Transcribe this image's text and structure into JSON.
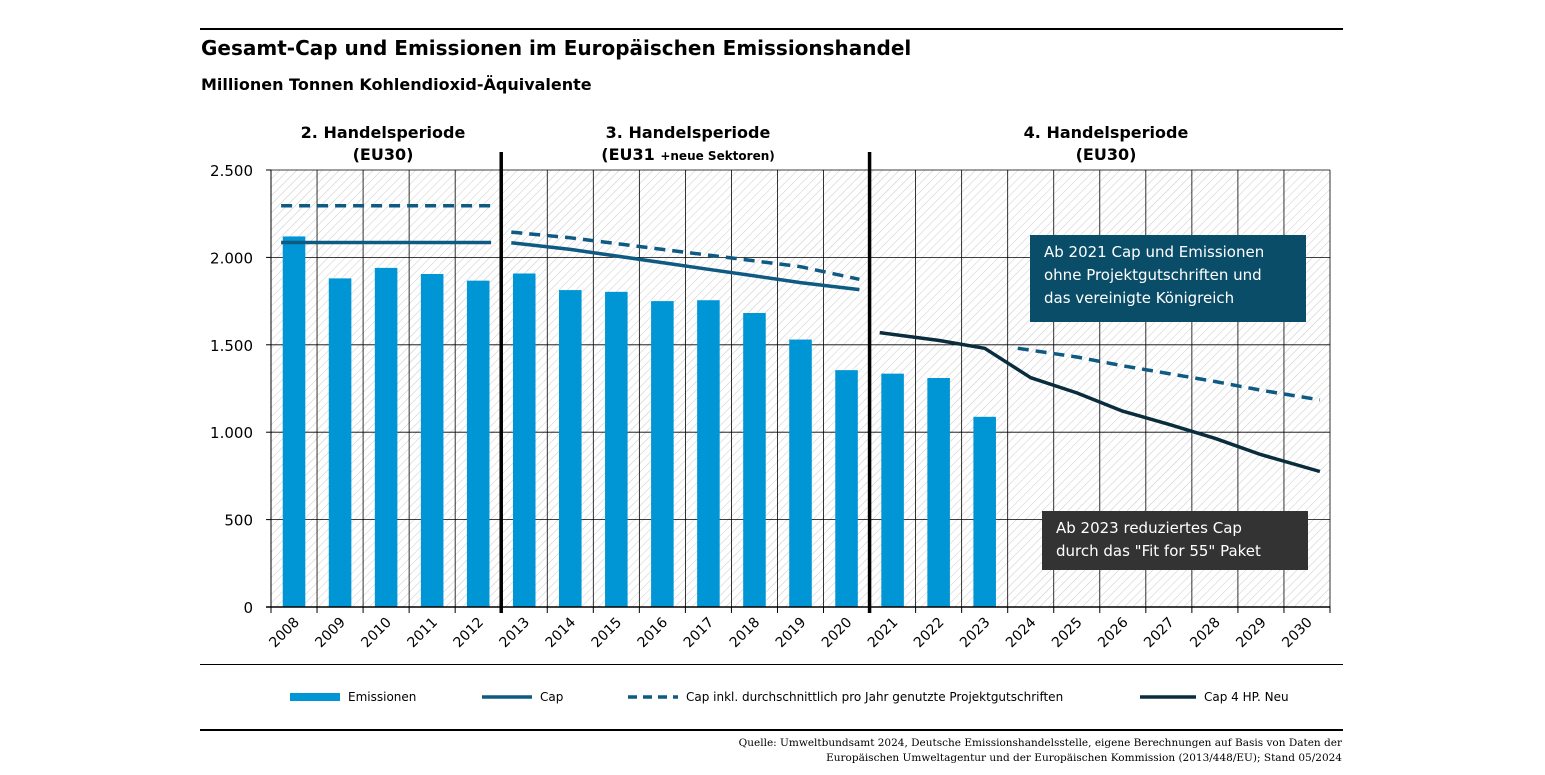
{
  "header": {
    "title": "Gesamt-Cap und Emissionen im Europäischen Emissionshandel",
    "subtitle": "Millionen Tonnen Kohlendioxid-Äquivalente"
  },
  "periods": [
    {
      "line1": "2. Handelsperiode",
      "line2": "(EU30)",
      "line2_small": ""
    },
    {
      "line1": "3. Handelsperiode",
      "line2": "(EU31",
      "line2_small": "+neue Sektoren)"
    },
    {
      "line1": "4. Handelsperiode",
      "line2": "(EU30)",
      "line2_small": ""
    }
  ],
  "annotations": {
    "box1": [
      "Ab 2021 Cap und Emissionen",
      "ohne Projektgutschriften und",
      "das vereinigte Königreich"
    ],
    "box2": [
      "Ab 2023 reduziertes Cap",
      "durch das \"Fit for 55\" Paket"
    ]
  },
  "legend": {
    "emissionen": "Emissionen",
    "cap": "Cap",
    "cap_credits": "Cap inkl. durchschnittlich pro Jahr genutzte Projektgutschriften",
    "cap_new": "Cap 4 HP. Neu"
  },
  "source": {
    "line1": "Quelle: Umweltbundsamt 2024, Deutsche Emissionshandelsstelle, eigene Berechnungen auf Basis von Daten der",
    "line2": "Europäischen Umweltagentur und der Europäischen Kommission (2013/448/EU); Stand 05/2024"
  },
  "chart_data": {
    "type": "bar",
    "categories": [
      "2008",
      "2009",
      "2010",
      "2011",
      "2012",
      "2013",
      "2014",
      "2015",
      "2016",
      "2017",
      "2018",
      "2019",
      "2020",
      "2021",
      "2022",
      "2023",
      "2024",
      "2025",
      "2026",
      "2027",
      "2028",
      "2029",
      "2030"
    ],
    "ylim": [
      0,
      2500
    ],
    "yticks": [
      0,
      500,
      1000,
      1500,
      2000,
      2500
    ],
    "ytick_labels": [
      "0",
      "500",
      "1.000",
      "1.500",
      "2.000",
      "2.500"
    ],
    "period_dividers_after": [
      "2012",
      "2020"
    ],
    "series": [
      {
        "name": "Emissionen",
        "type": "bar",
        "color": "#0095d5",
        "values": [
          2120,
          1880,
          1940,
          1905,
          1867,
          1908,
          1813,
          1803,
          1750,
          1755,
          1682,
          1530,
          1355,
          1335,
          1310,
          1088,
          null,
          null,
          null,
          null,
          null,
          null,
          null
        ]
      },
      {
        "name": "Cap",
        "type": "line",
        "style": "solid",
        "color": "#0f5a82",
        "values": [
          2085,
          2085,
          2085,
          2085,
          2085,
          2084,
          2046,
          2008,
          1970,
          1932,
          1894,
          1856,
          1816,
          null,
          null,
          null,
          null,
          null,
          null,
          null,
          null,
          null,
          null
        ]
      },
      {
        "name": "Cap inkl. durchschnittlich pro Jahr genutzte Projektgutschriften",
        "type": "line",
        "style": "dashed",
        "color": "#0f5a82",
        "values": [
          2295,
          2295,
          2295,
          2295,
          2295,
          2145,
          2112,
          2079,
          2046,
          2013,
          1980,
          1947,
          1875,
          null,
          null,
          null,
          1480,
          1430,
          1380,
          1335,
          1290,
          1240,
          1185
        ]
      },
      {
        "name": "Cap 4 HP. Neu",
        "type": "line",
        "style": "solid",
        "color": "#0a2d3e",
        "values": [
          null,
          null,
          null,
          null,
          null,
          null,
          null,
          null,
          null,
          null,
          null,
          null,
          null,
          1570,
          1525,
          1480,
          1312,
          1225,
          1120,
          1045,
          965,
          872,
          775
        ]
      }
    ]
  }
}
